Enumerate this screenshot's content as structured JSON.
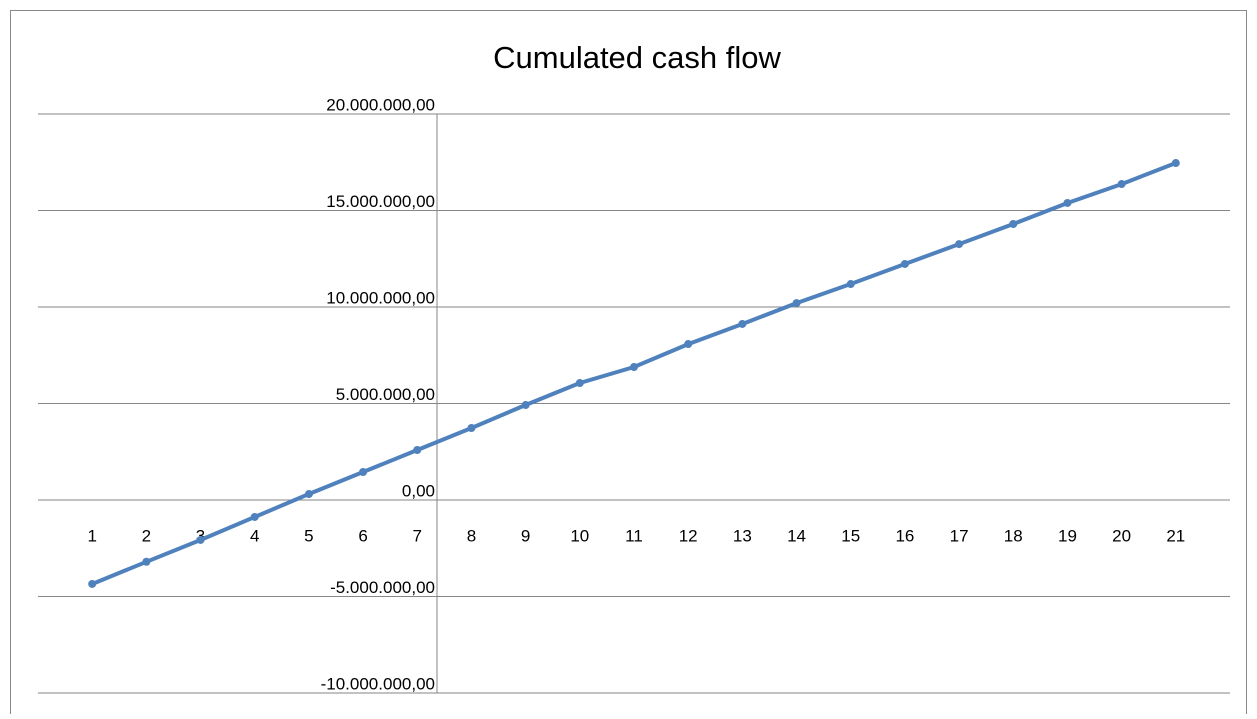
{
  "chart_data": {
    "type": "line",
    "title": "Cumulated cash flow",
    "categories": [
      "1",
      "2",
      "3",
      "4",
      "5",
      "6",
      "7",
      "8",
      "9",
      "10",
      "11",
      "12",
      "13",
      "14",
      "15",
      "16",
      "17",
      "18",
      "19",
      "20",
      "21"
    ],
    "series": [
      {
        "name": "Cumulated cash flow",
        "color": "#4f81bd",
        "values": [
          -4350000,
          -3200000,
          -2070000,
          -880000,
          310000,
          1450000,
          2590000,
          3730000,
          4920000,
          6060000,
          6890000,
          8080000,
          9120000,
          10200000,
          11190000,
          12230000,
          13260000,
          14300000,
          15390000,
          16370000,
          17460000
        ]
      }
    ],
    "ylim": [
      -10000000,
      20000000
    ],
    "yticks": [
      {
        "value": -10000000,
        "label": "-10.000.000,00"
      },
      {
        "value": -5000000,
        "label": "-5.000.000,00"
      },
      {
        "value": 0,
        "label": "0,00"
      },
      {
        "value": 5000000,
        "label": "5.000.000,00"
      },
      {
        "value": 10000000,
        "label": "10.000.000,00"
      },
      {
        "value": 15000000,
        "label": "15.000.000,00"
      },
      {
        "value": 20000000,
        "label": "20.000.000,00"
      }
    ],
    "grid": true
  }
}
